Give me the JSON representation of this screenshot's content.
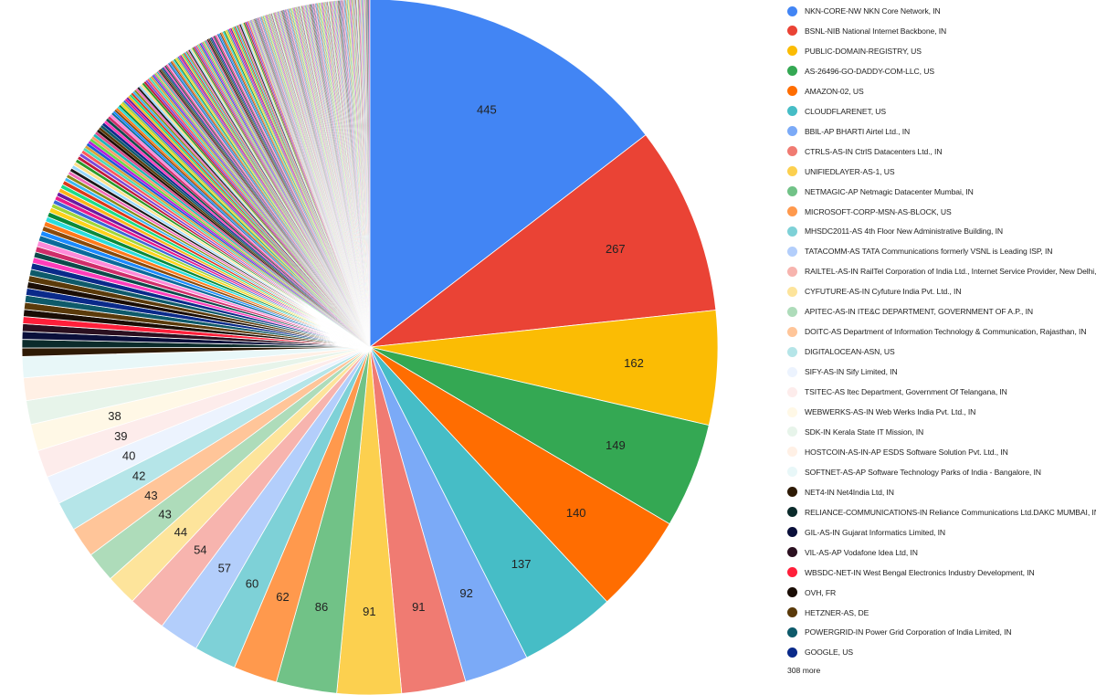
{
  "chart_data": {
    "type": "pie",
    "title": "",
    "legend_position": "right",
    "legend_more": "308 more",
    "slices": [
      {
        "label": "NKN-CORE-NW NKN Core Network, IN",
        "value": 445,
        "color": "#4285f4"
      },
      {
        "label": "BSNL-NIB National Internet Backbone, IN",
        "value": 267,
        "color": "#ea4335"
      },
      {
        "label": "PUBLIC-DOMAIN-REGISTRY, US",
        "value": 162,
        "color": "#fbbc04"
      },
      {
        "label": "AS-26496-GO-DADDY-COM-LLC, US",
        "value": 149,
        "color": "#34a853"
      },
      {
        "label": "AMAZON-02, US",
        "value": 140,
        "color": "#ff6d01"
      },
      {
        "label": "CLOUDFLARENET, US",
        "value": 137,
        "color": "#46bdc6"
      },
      {
        "label": "BBIL-AP BHARTI Airtel Ltd., IN",
        "value": 92,
        "color": "#7baaf7"
      },
      {
        "label": "CTRLS-AS-IN CtrlS Datacenters Ltd., IN",
        "value": 91,
        "color": "#f07b72"
      },
      {
        "label": "UNIFIEDLAYER-AS-1, US",
        "value": 91,
        "color": "#fcd04f"
      },
      {
        "label": "NETMAGIC-AP Netmagic Datacenter Mumbai, IN",
        "value": 86,
        "color": "#71c287"
      },
      {
        "label": "MICROSOFT-CORP-MSN-AS-BLOCK, US",
        "value": 62,
        "color": "#ff994d"
      },
      {
        "label": "MHSDC2011-AS 4th Floor New Administrative Building, IN",
        "value": 60,
        "color": "#7ed1d7"
      },
      {
        "label": "TATACOMM-AS TATA Communications formerly VSNL is Leading ISP, IN",
        "value": 57,
        "color": "#b3cefb"
      },
      {
        "label": "RAILTEL-AS-IN RailTel Corporation of India Ltd., Internet Service Provider, New Delhi, IN",
        "value": 54,
        "color": "#f7b4ae"
      },
      {
        "label": "CYFUTURE-AS-IN Cyfuture India Pvt. Ltd., IN",
        "value": 44,
        "color": "#fde49b"
      },
      {
        "label": "APITEC-AS-IN ITE&C DEPARTMENT, GOVERNMENT OF A.P., IN",
        "value": 43,
        "color": "#aedcba"
      },
      {
        "label": "DOITC-AS Department of Information Technology & Communication, Rajasthan, IN",
        "value": 43,
        "color": "#ffc599"
      },
      {
        "label": "DIGITALOCEAN-ASN, US",
        "value": 42,
        "color": "#b5e5e8"
      },
      {
        "label": "SIFY-AS-IN Sify Limited, IN",
        "value": 40,
        "color": "#ecf3fe"
      },
      {
        "label": "TSITEC-AS Itec Department, Government Of Telangana, IN",
        "value": 39,
        "color": "#fdeceb"
      },
      {
        "label": "WEBWERKS-AS-IN Web Werks India Pvt. Ltd., IN",
        "value": 38,
        "color": "#fff8e6"
      },
      {
        "label": "SDK-IN Kerala State IT Mission, IN",
        "value": 34,
        "color": "#e7f4ea"
      },
      {
        "label": "HOSTCOIN-AS-IN-AP ESDS Software Solution Pvt. Ltd., IN",
        "value": 32,
        "color": "#fff0e5"
      },
      {
        "label": "SOFTNET-AS-AP Software Technology Parks of India - Bangalore, IN",
        "value": 30,
        "color": "#e8f7f8"
      },
      {
        "label": "NET4-IN Net4India Ltd, IN",
        "value": 12,
        "color": "#2e1a05"
      },
      {
        "label": "RELIANCE-COMMUNICATIONS-IN Reliance Communications Ltd.DAKC MUMBAI, IN",
        "value": 12,
        "color": "#0b2b2b"
      },
      {
        "label": "GIL-AS-IN Gujarat Informatics Limited, IN",
        "value": 11,
        "color": "#0a0f3a"
      },
      {
        "label": "VIL-AS-AP Vodafone Idea Ltd, IN",
        "value": 11,
        "color": "#2b1020"
      },
      {
        "label": "WBSDC-NET-IN West Bengal Electronics Industry Development, IN",
        "value": 10,
        "color": "#ff1f3a"
      },
      {
        "label": "OVH, FR",
        "value": 10,
        "color": "#1a0d05"
      },
      {
        "label": "HETZNER-AS, DE",
        "value": 10,
        "color": "#5a3a0a"
      },
      {
        "label": "POWERGRID-IN Power Grid Corporation of India Limited, IN",
        "value": 10,
        "color": "#0e5a6a"
      },
      {
        "label": "GOOGLE, US",
        "value": 10,
        "color": "#0a2a8a"
      }
    ],
    "data_labels": [
      "445",
      "267",
      "162",
      "149",
      "140",
      "137",
      "92",
      "91",
      "91",
      "86",
      "62",
      "60",
      "57",
      "54",
      "44",
      "43",
      "43",
      "42",
      "40",
      "39",
      "38"
    ],
    "other_slices": {
      "count": 308,
      "values": [
        9,
        9,
        9,
        9,
        8,
        8,
        8,
        8,
        8,
        7,
        7,
        7,
        7,
        7,
        7,
        6,
        6,
        6,
        6,
        6,
        6,
        6,
        5,
        5,
        5,
        5,
        5,
        5,
        5,
        5,
        5,
        5,
        4,
        4,
        4,
        4,
        4,
        4,
        4,
        4,
        4,
        4,
        4,
        4,
        4,
        4,
        4,
        4,
        3,
        3,
        3,
        3,
        3,
        3,
        3,
        3,
        3,
        3,
        3,
        3,
        3,
        3,
        3,
        3,
        3,
        3,
        3,
        3,
        3,
        3,
        3,
        3,
        3,
        3,
        2,
        2,
        2,
        2,
        2,
        2,
        2,
        2,
        2,
        2,
        2,
        2,
        2,
        2,
        2,
        2,
        2,
        2,
        2,
        2,
        2,
        2,
        2,
        2,
        2,
        2,
        2,
        2,
        2,
        2,
        2,
        2,
        2,
        2,
        2,
        2,
        2,
        2,
        2,
        2,
        2,
        2,
        2,
        2,
        2,
        2,
        2,
        2,
        2,
        2,
        2,
        2,
        2,
        2,
        2,
        2,
        2,
        2,
        2,
        2,
        2,
        2,
        2,
        2,
        2,
        2,
        2,
        2,
        2,
        2,
        2,
        2,
        2,
        2,
        2,
        2,
        2,
        2,
        1,
        1,
        1,
        1,
        1,
        1,
        1,
        1,
        1,
        1,
        1,
        1,
        1,
        1,
        1,
        1,
        1,
        1,
        1,
        1,
        1,
        1,
        1,
        1,
        1,
        1,
        1,
        1,
        1,
        1,
        1,
        1,
        1,
        1,
        1,
        1,
        1,
        1,
        1,
        1,
        1,
        1,
        1,
        1,
        1,
        1,
        1,
        1,
        1,
        1,
        1,
        1,
        1,
        1,
        1,
        1,
        1,
        1,
        1,
        1,
        1,
        1,
        1,
        1,
        1,
        1,
        1,
        1,
        1,
        1,
        1,
        1,
        1,
        1,
        1,
        1,
        1,
        1,
        1,
        1,
        1,
        1,
        1,
        1,
        1,
        1,
        1,
        1,
        1,
        1,
        1,
        1,
        1,
        1,
        1,
        1,
        1,
        1,
        1,
        1,
        1,
        1,
        1,
        1,
        1,
        1,
        1,
        1,
        1,
        1,
        1,
        1,
        1,
        1,
        1,
        1,
        1,
        1,
        1,
        1,
        1,
        1,
        1,
        1,
        1,
        1,
        1,
        1,
        1,
        1,
        1,
        1,
        1,
        1,
        1,
        1,
        1,
        1,
        1,
        1,
        1,
        1,
        1,
        1,
        1,
        1,
        1,
        1,
        1,
        1,
        1,
        1,
        1,
        1,
        1,
        1,
        1,
        1,
        1,
        1,
        1,
        1,
        1,
        1,
        1,
        1,
        1,
        1,
        1,
        1,
        1,
        1,
        1
      ],
      "colors": [
        "#1a0d05",
        "#5a3a0a",
        "#0e5a6a",
        "#0a2a8a",
        "#ff3dbb",
        "#0c4a4a",
        "#d02d6a",
        "#ff8ad8",
        "#0a6a9a",
        "#1a8aff",
        "#8a4a0a",
        "#ff7a1a",
        "#2adcdc",
        "#0a8a3a",
        "#ffd21a",
        "#a2d63a",
        "#3a6ad8",
        "#e91a8a",
        "#6a1aa2",
        "#ffb31a",
        "#1adc8a",
        "#dc3a1a",
        "#3ab8f0",
        "#8a8a1a",
        "#f06ab8",
        "#1a1a1a",
        "#9ad8ff",
        "#ffe08a",
        "#2a9a2a",
        "#c21a3a",
        "#7a4ad8",
        "#ff5a5a",
        "#4adcb8",
        "#d8a23a",
        "#1a5ad8",
        "#b81ad8",
        "#6ad84a",
        "#ff9a6a",
        "#1ab8b8",
        "#d84a8a"
      ]
    }
  }
}
